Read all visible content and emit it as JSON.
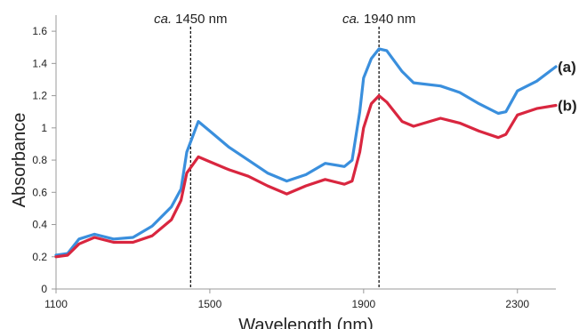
{
  "chart_data": {
    "type": "line",
    "x_label": "Wavelength (nm)",
    "y_label": "Absorbance",
    "x": [
      1100,
      1130,
      1160,
      1200,
      1250,
      1300,
      1350,
      1400,
      1425,
      1440,
      1470,
      1500,
      1550,
      1600,
      1650,
      1700,
      1750,
      1800,
      1850,
      1870,
      1890,
      1900,
      1920,
      1940,
      1960,
      2000,
      2030,
      2100,
      2150,
      2200,
      2250,
      2270,
      2300,
      2350,
      2400
    ],
    "series": [
      {
        "name": "(a)",
        "color": "#3a8fdd",
        "values": [
          0.21,
          0.22,
          0.31,
          0.34,
          0.31,
          0.32,
          0.39,
          0.51,
          0.62,
          0.85,
          1.04,
          0.98,
          0.88,
          0.8,
          0.72,
          0.67,
          0.71,
          0.78,
          0.76,
          0.8,
          1.1,
          1.31,
          1.43,
          1.49,
          1.48,
          1.35,
          1.28,
          1.26,
          1.22,
          1.15,
          1.09,
          1.1,
          1.23,
          1.29,
          1.38
        ]
      },
      {
        "name": "(b)",
        "color": "#d9263f",
        "values": [
          0.2,
          0.21,
          0.28,
          0.32,
          0.29,
          0.29,
          0.33,
          0.43,
          0.55,
          0.72,
          0.82,
          0.79,
          0.74,
          0.7,
          0.64,
          0.59,
          0.64,
          0.68,
          0.65,
          0.67,
          0.85,
          1.0,
          1.15,
          1.2,
          1.16,
          1.04,
          1.01,
          1.06,
          1.03,
          0.98,
          0.94,
          0.96,
          1.08,
          1.12,
          1.14
        ]
      }
    ],
    "annotations": [
      {
        "x": 1450,
        "prefix": "ca.",
        "label": "1450 nm"
      },
      {
        "x": 1940,
        "prefix": "ca.",
        "label": "1940 nm"
      }
    ],
    "xlim": [
      1100,
      2400
    ],
    "xticks": [
      1100,
      1500,
      1900,
      2300
    ],
    "ylim": [
      0,
      1.7
    ],
    "yticks": [
      0,
      0.2,
      0.4,
      0.6,
      0.8,
      1,
      1.2,
      1.4,
      1.6
    ],
    "grid": false
  }
}
